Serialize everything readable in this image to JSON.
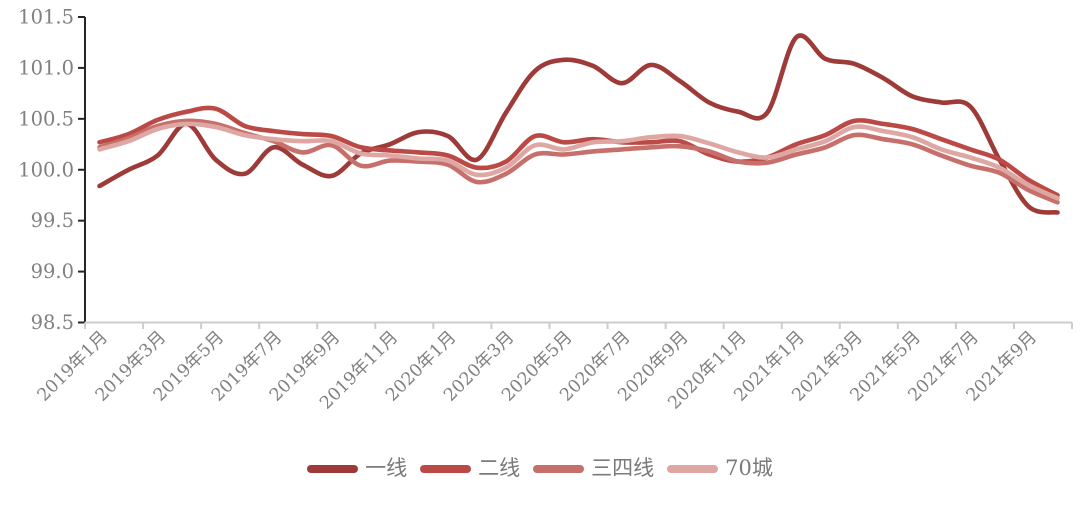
{
  "chart_data": {
    "type": "line",
    "title": "",
    "xlabel": "",
    "ylabel": "",
    "grid": false,
    "legend_position": "bottom",
    "ylim": [
      98.5,
      101.5
    ],
    "y_ticks": [
      98.5,
      99.0,
      99.5,
      100.0,
      100.5,
      101.0,
      101.5
    ],
    "y_tick_labels": [
      "98.5",
      "99.0",
      "99.5",
      "100.0",
      "100.5",
      "101.0",
      "101.5"
    ],
    "x": [
      "2019年1月",
      "2019年2月",
      "2019年3月",
      "2019年4月",
      "2019年5月",
      "2019年6月",
      "2019年7月",
      "2019年8月",
      "2019年9月",
      "2019年10月",
      "2019年11月",
      "2019年12月",
      "2020年1月",
      "2020年2月",
      "2020年3月",
      "2020年4月",
      "2020年5月",
      "2020年6月",
      "2020年7月",
      "2020年8月",
      "2020年9月",
      "2020年10月",
      "2020年11月",
      "2020年12月",
      "2021年1月",
      "2021年2月",
      "2021年3月",
      "2021年4月",
      "2021年5月",
      "2021年6月",
      "2021年7月",
      "2021年8月",
      "2021年9月",
      "2021年10月"
    ],
    "x_tick_labels": [
      "2019年1月",
      "2019年3月",
      "2019年5月",
      "2019年7月",
      "2019年9月",
      "2019年11月",
      "2020年1月",
      "2020年3月",
      "2020年5月",
      "2020年7月",
      "2020年9月",
      "2020年11月",
      "2021年1月",
      "2021年3月",
      "2021年5月",
      "2021年7月",
      "2021年9月"
    ],
    "series": [
      {
        "id": "first-tier",
        "name": "一线",
        "color": "#9e3b38",
        "values": [
          99.84,
          100.0,
          100.14,
          100.45,
          100.1,
          99.96,
          100.22,
          100.05,
          99.94,
          100.16,
          100.25,
          100.37,
          100.33,
          100.1,
          100.56,
          100.97,
          101.08,
          101.02,
          100.85,
          101.03,
          100.87,
          100.66,
          100.57,
          100.56,
          101.3,
          101.09,
          101.04,
          100.9,
          100.72,
          100.66,
          100.62,
          100.1,
          99.64,
          99.58
        ]
      },
      {
        "id": "second-tier",
        "name": "二线",
        "color": "#bb4a46",
        "values": [
          100.27,
          100.35,
          100.49,
          100.57,
          100.6,
          100.43,
          100.38,
          100.35,
          100.33,
          100.22,
          100.19,
          100.17,
          100.14,
          100.02,
          100.08,
          100.33,
          100.27,
          100.3,
          100.27,
          100.27,
          100.28,
          100.15,
          100.08,
          100.12,
          100.25,
          100.34,
          100.48,
          100.45,
          100.4,
          100.3,
          100.2,
          100.1,
          99.9,
          99.75
        ]
      },
      {
        "id": "third-fourth-tier",
        "name": "三四线",
        "color": "#c7706b",
        "values": [
          100.22,
          100.31,
          100.43,
          100.48,
          100.45,
          100.36,
          100.28,
          100.17,
          100.24,
          100.04,
          100.09,
          100.08,
          100.05,
          99.88,
          99.96,
          100.15,
          100.15,
          100.18,
          100.2,
          100.22,
          100.23,
          100.18,
          100.08,
          100.07,
          100.15,
          100.22,
          100.34,
          100.3,
          100.25,
          100.14,
          100.04,
          99.97,
          99.8,
          99.68
        ]
      },
      {
        "id": "seventy-cities",
        "name": "70城",
        "color": "#dfa7a3",
        "values": [
          100.2,
          100.28,
          100.4,
          100.45,
          100.42,
          100.34,
          100.3,
          100.28,
          100.28,
          100.16,
          100.14,
          100.11,
          100.09,
          99.95,
          100.02,
          100.24,
          100.2,
          100.27,
          100.28,
          100.32,
          100.33,
          100.26,
          100.17,
          100.12,
          100.2,
          100.28,
          100.42,
          100.38,
          100.32,
          100.2,
          100.12,
          100.02,
          99.85,
          99.72
        ]
      }
    ],
    "style": {
      "axis_text_color": "#808080",
      "y_axis_line_color": "#262626",
      "x_axis_line_color": "#cccccc",
      "background": "#ffffff",
      "line_width": 4.6
    }
  }
}
